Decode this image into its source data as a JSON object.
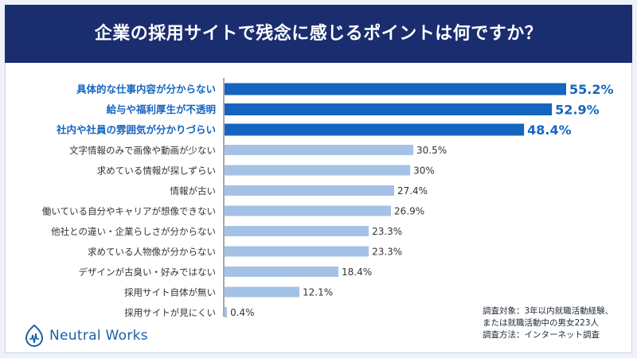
{
  "title": "企業の採用サイトで残念に感じるポイントは何ですか？",
  "chart_data": {
    "type": "bar",
    "orientation": "horizontal",
    "categories": [
      "具体的な仕事内容が分からない",
      "給与や福利厚生が不透明",
      "社内や社員の雰囲気が分かりづらい",
      "文字情報のみで画像や動画が少ない",
      "求めている情報が探しずらい",
      "情報が古い",
      "働いている自分やキャリアが想像できない",
      "他社との違い・企業らしさが分からない",
      "求めている人物像が分からない",
      "デザインが古臭い・好みではない",
      "採用サイト自体が無い",
      "採用サイトが見にくい"
    ],
    "values": [
      55.2,
      52.9,
      48.4,
      30.5,
      30,
      27.4,
      26.9,
      23.3,
      23.3,
      18.4,
      12.1,
      0.4
    ],
    "value_labels": [
      "55.2%",
      "52.9%",
      "48.4%",
      "30.5%",
      "30%",
      "27.4%",
      "26.9%",
      "23.3%",
      "23.3%",
      "18.4%",
      "12.1%",
      "0.4%"
    ],
    "highlight_count": 3,
    "xlim": [
      0,
      60
    ],
    "unit": "%",
    "colors": {
      "highlight_bar": "#1565c0",
      "normal_bar": "#a4c2e6",
      "highlight_label": "#1565c0",
      "normal_label": "#333333"
    }
  },
  "footnote": {
    "line1": "調査対象：3年以内就職活動経験、",
    "line2": "または就職活動中の男女223人",
    "line3": "調査方法：インターネット調査"
  },
  "brand": {
    "name": "Neutral Works",
    "icon": "neutral-works-logo-icon",
    "color": "#1b5fa8"
  }
}
